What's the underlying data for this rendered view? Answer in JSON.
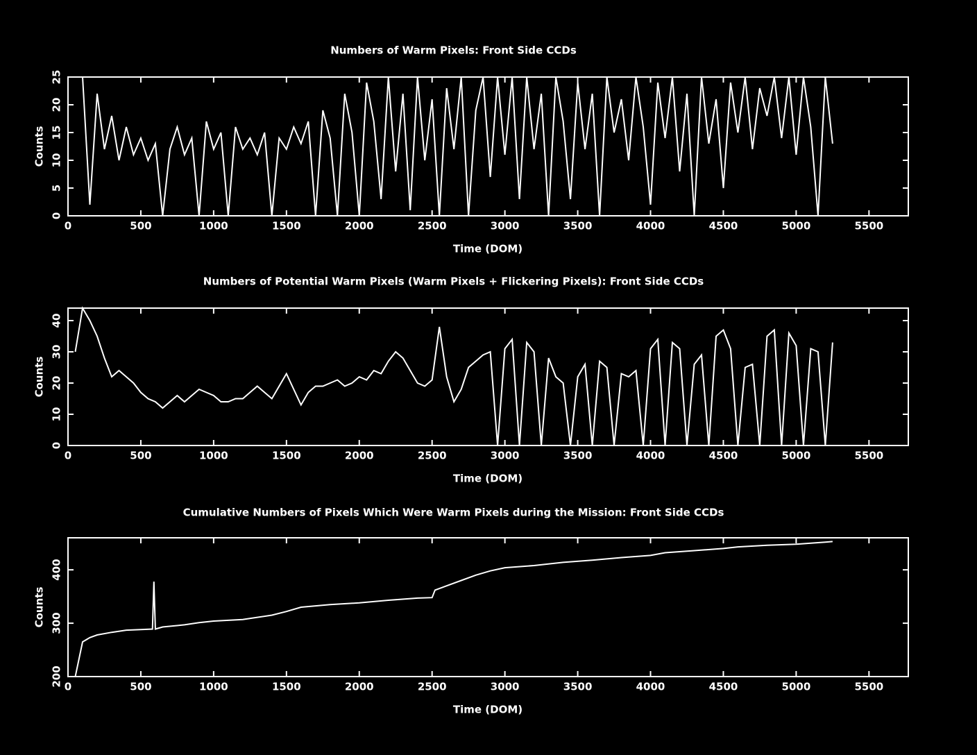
{
  "chart_data": [
    {
      "type": "line",
      "title": "Numbers of Warm Pixels: Front Side CCDs",
      "x_label": "Time (DOM)",
      "y_label": "Counts",
      "xlim": [
        0,
        5770
      ],
      "xticks": [
        0,
        500,
        1000,
        1500,
        2000,
        2500,
        3000,
        3500,
        4000,
        4500,
        5000,
        5500
      ],
      "ylim": [
        0,
        25
      ],
      "yticks": [
        0,
        5,
        10,
        15,
        20,
        25
      ],
      "series": [
        {
          "color": "#ffffff",
          "x": [
            100,
            150,
            200,
            250,
            300,
            350,
            400,
            450,
            500,
            550,
            600,
            650,
            700,
            750,
            800,
            850,
            900,
            950,
            1000,
            1050,
            1100,
            1150,
            1200,
            1250,
            1300,
            1350,
            1400,
            1450,
            1500,
            1550,
            1600,
            1650,
            1700,
            1750,
            1800,
            1850,
            1900,
            1950,
            2000,
            2050,
            2100,
            2150,
            2200,
            2250,
            2300,
            2350,
            2400,
            2450,
            2500,
            2550,
            2600,
            2650,
            2700,
            2750,
            2800,
            2850,
            2900,
            2950,
            3000,
            3050,
            3100,
            3150,
            3200,
            3250,
            3300,
            3350,
            3400,
            3450,
            3500,
            3550,
            3600,
            3650,
            3700,
            3750,
            3800,
            3850,
            3900,
            3950,
            4000,
            4050,
            4100,
            4150,
            4200,
            4250,
            4300,
            4350,
            4400,
            4450,
            4500,
            4550,
            4600,
            4650,
            4700,
            4750,
            4800,
            4850,
            4900,
            4950,
            5000,
            5050,
            5100,
            5150,
            5200,
            5250
          ],
          "values": [
            25,
            2,
            22,
            12,
            18,
            10,
            16,
            11,
            14,
            10,
            13,
            0,
            12,
            16,
            11,
            14,
            0,
            17,
            12,
            15,
            0,
            16,
            12,
            14,
            11,
            15,
            0,
            14,
            12,
            16,
            13,
            17,
            0,
            19,
            14,
            0,
            22,
            15,
            0,
            24,
            17,
            3,
            25,
            8,
            22,
            1,
            25,
            10,
            21,
            0,
            23,
            12,
            25,
            0,
            19,
            25,
            7,
            25,
            11,
            25,
            3,
            25,
            12,
            22,
            0,
            25,
            17,
            3,
            24,
            12,
            22,
            0,
            25,
            15,
            21,
            10,
            25,
            16,
            2,
            24,
            14,
            25,
            8,
            22,
            0,
            25,
            13,
            21,
            5,
            24,
            15,
            25,
            12,
            23,
            18,
            25,
            14,
            25,
            11,
            25,
            16,
            0,
            25,
            13
          ]
        }
      ]
    },
    {
      "type": "line",
      "title": "Numbers of Potential Warm Pixels (Warm Pixels + Flickering Pixels): Front Side CCDs",
      "x_label": "Time (DOM)",
      "y_label": "Counts",
      "xlim": [
        0,
        5770
      ],
      "xticks": [
        0,
        500,
        1000,
        1500,
        2000,
        2500,
        3000,
        3500,
        4000,
        4500,
        5000,
        5500
      ],
      "ylim": [
        0,
        44
      ],
      "yticks": [
        0,
        10,
        20,
        30,
        40
      ],
      "series": [
        {
          "color": "#ffffff",
          "x": [
            50,
            100,
            150,
            200,
            250,
            300,
            350,
            400,
            450,
            500,
            550,
            600,
            650,
            700,
            750,
            800,
            850,
            900,
            950,
            1000,
            1050,
            1100,
            1150,
            1200,
            1250,
            1300,
            1350,
            1400,
            1450,
            1500,
            1550,
            1600,
            1650,
            1700,
            1750,
            1800,
            1850,
            1900,
            1950,
            2000,
            2050,
            2100,
            2150,
            2200,
            2250,
            2300,
            2350,
            2400,
            2450,
            2500,
            2550,
            2600,
            2650,
            2700,
            2750,
            2800,
            2850,
            2900,
            2950,
            3000,
            3050,
            3100,
            3150,
            3200,
            3250,
            3300,
            3350,
            3400,
            3450,
            3500,
            3550,
            3600,
            3650,
            3700,
            3750,
            3800,
            3850,
            3900,
            3950,
            4000,
            4050,
            4100,
            4150,
            4200,
            4250,
            4300,
            4350,
            4400,
            4450,
            4500,
            4550,
            4600,
            4650,
            4700,
            4750,
            4800,
            4850,
            4900,
            4950,
            5000,
            5050,
            5100,
            5150,
            5200,
            5250
          ],
          "values": [
            30,
            44,
            40,
            35,
            28,
            22,
            24,
            22,
            20,
            17,
            15,
            14,
            12,
            14,
            16,
            14,
            16,
            18,
            17,
            16,
            14,
            14,
            15,
            15,
            17,
            19,
            17,
            15,
            19,
            23,
            18,
            13,
            17,
            19,
            19,
            20,
            21,
            19,
            20,
            22,
            21,
            24,
            23,
            27,
            30,
            28,
            24,
            20,
            19,
            21,
            38,
            22,
            14,
            18,
            25,
            27,
            29,
            30,
            0,
            31,
            34,
            0,
            33,
            30,
            0,
            28,
            22,
            20,
            0,
            22,
            26,
            0,
            27,
            25,
            0,
            23,
            22,
            24,
            0,
            31,
            34,
            0,
            33,
            31,
            0,
            26,
            29,
            0,
            35,
            37,
            31,
            0,
            25,
            26,
            0,
            35,
            37,
            0,
            36,
            32,
            0,
            31,
            30,
            0,
            33
          ]
        }
      ]
    },
    {
      "type": "line",
      "title": "Cumulative Numbers of Pixels Which Were Warm Pixels during the Mission: Front Side CCDs",
      "x_label": "Time (DOM)",
      "y_label": "Counts",
      "xlim": [
        0,
        5770
      ],
      "xticks": [
        0,
        500,
        1000,
        1500,
        2000,
        2500,
        3000,
        3500,
        4000,
        4500,
        5000,
        5500
      ],
      "ylim": [
        200,
        460
      ],
      "yticks": [
        200,
        300,
        400
      ],
      "series": [
        {
          "color": "#ffffff",
          "x": [
            50,
            100,
            150,
            200,
            300,
            400,
            500,
            580,
            590,
            600,
            650,
            800,
            900,
            1000,
            1200,
            1400,
            1500,
            1600,
            1800,
            2000,
            2200,
            2400,
            2500,
            2520,
            2600,
            2700,
            2800,
            2900,
            3000,
            3200,
            3400,
            3600,
            3800,
            4000,
            4100,
            4300,
            4500,
            4600,
            4800,
            5000,
            5200,
            5250
          ],
          "values": [
            200,
            265,
            273,
            278,
            283,
            287,
            288,
            289,
            378,
            289,
            293,
            297,
            301,
            304,
            307,
            315,
            322,
            330,
            335,
            338,
            343,
            347,
            348,
            362,
            370,
            380,
            390,
            398,
            404,
            408,
            414,
            418,
            423,
            427,
            432,
            436,
            440,
            443,
            446,
            448,
            452,
            453
          ]
        }
      ]
    }
  ]
}
